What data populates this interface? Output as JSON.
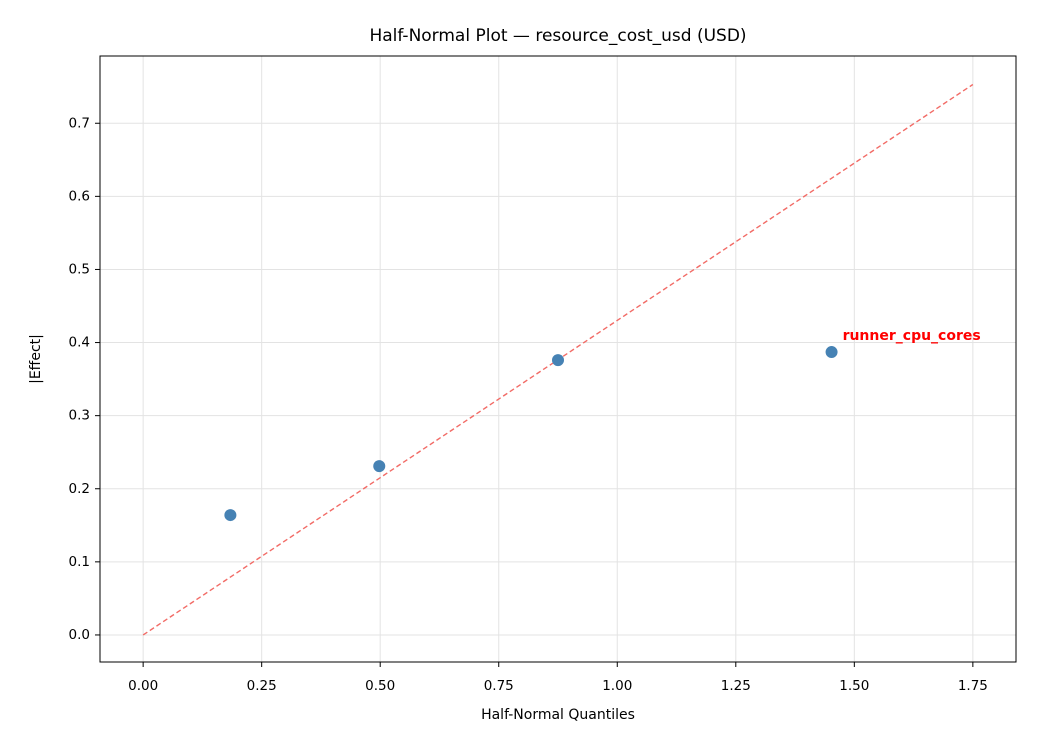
{
  "chart_data": {
    "type": "scatter",
    "title": "Half-Normal Plot — resource_cost_usd (USD)",
    "x_label": "Half-Normal Quantiles",
    "y_label": "|Effect|",
    "x": [
      0.184,
      0.498,
      0.875,
      1.452
    ],
    "values": [
      0.164,
      0.231,
      0.376,
      0.387
    ],
    "color": "#4682b4",
    "reference_line": {
      "x": [
        0,
        1.75
      ],
      "y": [
        0,
        0.753
      ],
      "color": "#f26b66"
    },
    "annotations": [
      {
        "text": "runner_cpu_cores",
        "index": 3,
        "color": "#ff0000"
      }
    ],
    "xlim": [
      -0.091,
      1.841
    ],
    "ylim": [
      -0.037,
      0.792
    ],
    "xticks": [
      {
        "value": 0,
        "label": "0.00"
      },
      {
        "value": 0.25,
        "label": "0.25"
      },
      {
        "value": 0.5,
        "label": "0.50"
      },
      {
        "value": 0.75,
        "label": "0.75"
      },
      {
        "value": 1,
        "label": "1.00"
      },
      {
        "value": 1.25,
        "label": "1.25"
      },
      {
        "value": 1.5,
        "label": "1.50"
      },
      {
        "value": 1.75,
        "label": "1.75"
      }
    ],
    "yticks": [
      {
        "value": 0,
        "label": "0.0"
      },
      0.1,
      0.2,
      0.3,
      0.4,
      0.5,
      0.6,
      0.7
    ],
    "grid": true
  }
}
